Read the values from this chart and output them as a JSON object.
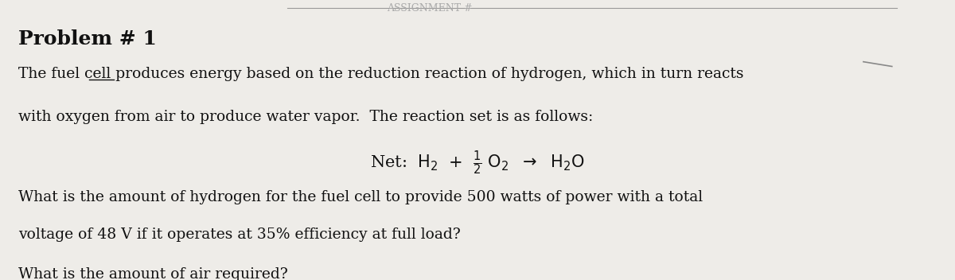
{
  "bg_color": "#eeece8",
  "title": "Problem # 1",
  "title_fontsize": 18,
  "body_fontsize": 13.5,
  "equation_fontsize": 14,
  "body_color": "#111111",
  "line1": "The fuel cell produces energy based on the reduction reaction of hydrogen, which in turn reacts",
  "line2": "with oxygen from air to produce water vapor.  The reaction set is as follows:",
  "line5": "What is the amount of hydrogen for the fuel cell to provide 500 watts of power with a total",
  "line6": "voltage of 48 V if it operates at 35% efficiency at full load?",
  "line7": "What is the amount of air required?"
}
